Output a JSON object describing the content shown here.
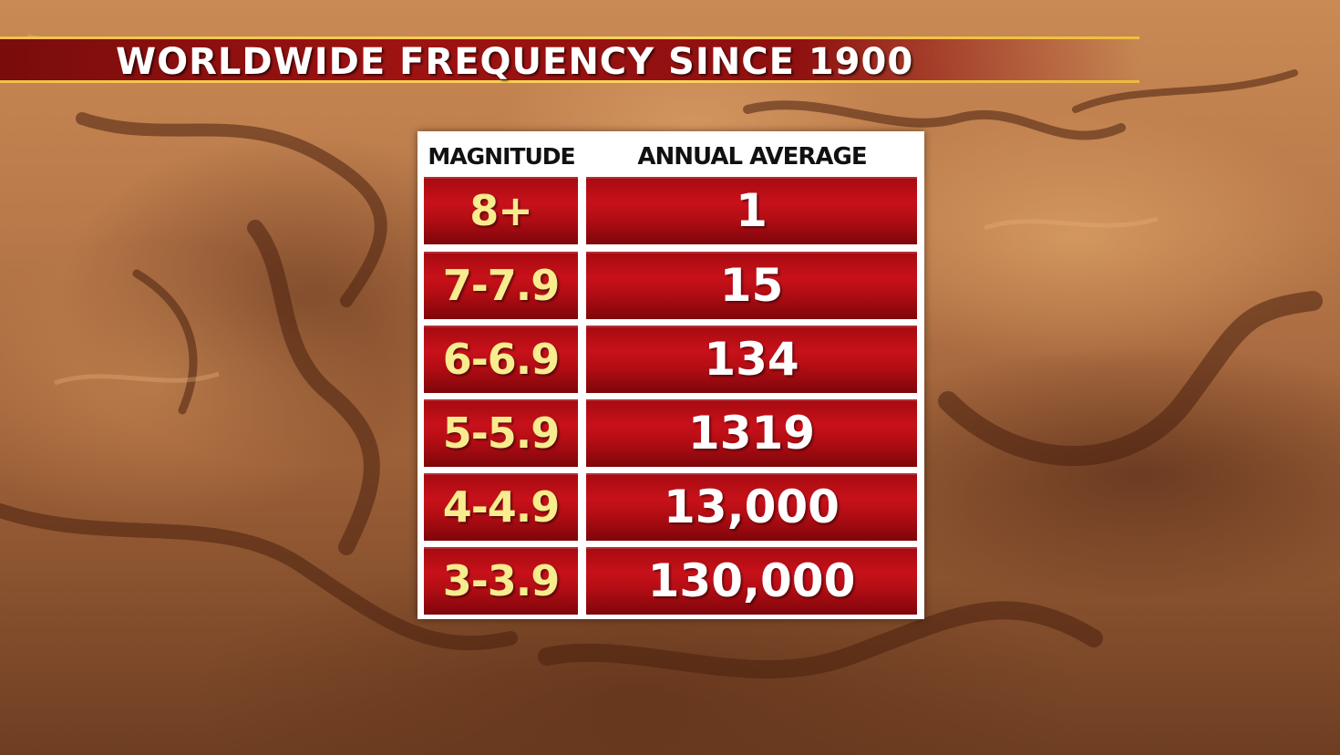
{
  "title": "WORLDWIDE FREQUENCY SINCE 1900",
  "table": {
    "headers": {
      "magnitude": "MAGNITUDE",
      "annual_average": "ANNUAL AVERAGE"
    },
    "rows": [
      {
        "magnitude": "8+",
        "annual_average": "1"
      },
      {
        "magnitude": "7-7.9",
        "annual_average": "15"
      },
      {
        "magnitude": "6-6.9",
        "annual_average": "134"
      },
      {
        "magnitude": "5-5.9",
        "annual_average": "1319"
      },
      {
        "magnitude": "4-4.9",
        "annual_average": "13,000"
      },
      {
        "magnitude": "3-3.9",
        "annual_average": "130,000"
      }
    ]
  },
  "colors": {
    "banner_red": "#9e1212",
    "banner_gold": "#f2c24a",
    "cell_red": "#c8111a",
    "magnitude_text": "#f7ec8e",
    "average_text": "#ffffff"
  }
}
